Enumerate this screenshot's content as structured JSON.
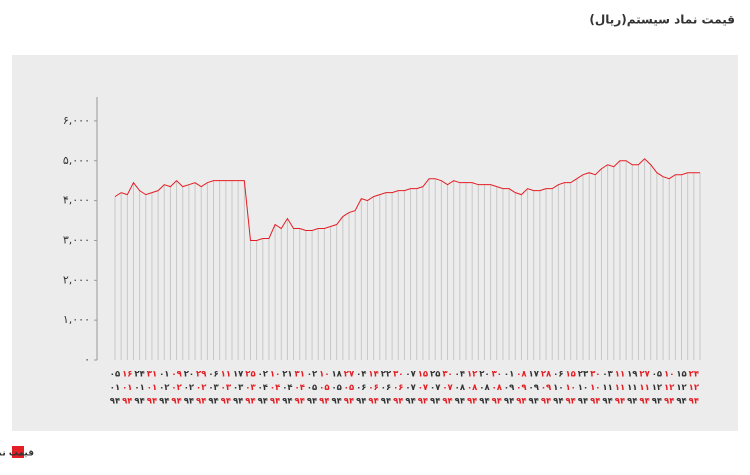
{
  "chart_data": {
    "type": "line",
    "title": "قیمت نماد سیستم(ریال)",
    "legend": "bottom-left",
    "categories": [
      [
        "۰۵",
        "۰۱",
        "۹۴"
      ],
      null,
      [
        "۱۶",
        "۰۱",
        "۹۴"
      ],
      null,
      [
        "۲۴",
        "۰۱",
        "۹۴"
      ],
      null,
      [
        "۳۱",
        "۰۱",
        "۹۴"
      ],
      null,
      [
        "۰۱",
        "۰۲",
        "۹۴"
      ],
      null,
      [
        "۰۹",
        "۰۲",
        "۹۴"
      ],
      null,
      [
        "۲۰",
        "۰۲",
        "۹۴"
      ],
      null,
      [
        "۲۹",
        "۰۲",
        "۹۴"
      ],
      null,
      [
        "۰۶",
        "۰۳",
        "۹۴"
      ],
      null,
      [
        "۱۱",
        "۰۳",
        "۹۴"
      ],
      null,
      [
        "۱۷",
        "۰۳",
        "۹۴"
      ],
      null,
      [
        "۲۵",
        "۰۳",
        "۹۴"
      ],
      null,
      [
        "۰۲",
        "۰۴",
        "۹۴"
      ],
      null,
      [
        "۱۰",
        "۰۴",
        "۹۴"
      ],
      null,
      [
        "۲۱",
        "۰۴",
        "۹۴"
      ],
      null,
      [
        "۳۱",
        "۰۴",
        "۹۴"
      ],
      null,
      [
        "۰۲",
        "۰۵",
        "۹۴"
      ],
      null,
      [
        "۱۰",
        "۰۵",
        "۹۴"
      ],
      null,
      [
        "۱۸",
        "۰۵",
        "۹۴"
      ],
      null,
      [
        "۲۷",
        "۰۵",
        "۹۴"
      ],
      null,
      [
        "۰۴",
        "۰۶",
        "۹۴"
      ],
      null,
      [
        "۱۴",
        "۰۶",
        "۹۴"
      ],
      null,
      [
        "۲۲",
        "۰۶",
        "۹۴"
      ],
      null,
      [
        "۳۰",
        "۰۶",
        "۹۴"
      ],
      null,
      [
        "۰۷",
        "۰۷",
        "۹۴"
      ],
      null,
      [
        "۱۵",
        "۰۷",
        "۹۴"
      ],
      null,
      [
        "۲۵",
        "۰۷",
        "۹۴"
      ],
      null,
      [
        "۳۰",
        "۰۷",
        "۹۴"
      ],
      null,
      [
        "۰۴",
        "۰۸",
        "۹۴"
      ],
      null,
      [
        "۱۲",
        "۰۸",
        "۹۴"
      ],
      null,
      [
        "۲۰",
        "۰۸",
        "۹۴"
      ],
      null,
      [
        "۳۰",
        "۰۸",
        "۹۴"
      ],
      null,
      [
        "۰۱",
        "۰۹",
        "۹۴"
      ],
      null,
      [
        "۰۸",
        "۰۹",
        "۹۴"
      ],
      null,
      [
        "۱۷",
        "۰۹",
        "۹۴"
      ],
      null,
      [
        "۲۸",
        "۰۹",
        "۹۴"
      ],
      null,
      [
        "۰۶",
        "۱۰",
        "۹۴"
      ],
      null,
      [
        "۱۵",
        "۱۰",
        "۹۴"
      ],
      null,
      [
        "۲۳",
        "۱۰",
        "۹۴"
      ],
      null,
      [
        "۳۰",
        "۱۰",
        "۹۴"
      ],
      null,
      [
        "۰۳",
        "۱۱",
        "۹۴"
      ],
      null,
      [
        "۱۱",
        "۱۱",
        "۹۴"
      ],
      null,
      [
        "۱۹",
        "۱۱",
        "۹۴"
      ],
      null,
      [
        "۲۷",
        "۱۱",
        "۹۴"
      ],
      null,
      [
        "۰۵",
        "۱۲",
        "۹۴"
      ],
      null,
      [
        "۱۰",
        "۱۲",
        "۹۴"
      ],
      null,
      [
        "۱۵",
        "۱۲",
        "۹۴"
      ],
      null,
      [
        "۲۴",
        "۱۲",
        "۹۴"
      ],
      null
    ],
    "series": [
      {
        "name": "قیمت نماد سیستم (ریال)",
        "color": "#e31e24",
        "values": [
          4100,
          4200,
          4150,
          4450,
          4250,
          4150,
          4200,
          4250,
          4400,
          4350,
          4500,
          4350,
          4400,
          4450,
          4350,
          4450,
          4500,
          4500,
          4500,
          4500,
          4500,
          4500,
          3000,
          3000,
          3050,
          3050,
          3400,
          3300,
          3550,
          3300,
          3300,
          3250,
          3250,
          3300,
          3300,
          3350,
          3400,
          3600,
          3700,
          3750,
          4050,
          4000,
          4100,
          4150,
          4200,
          4200,
          4250,
          4250,
          4300,
          4300,
          4350,
          4550,
          4550,
          4500,
          4400,
          4500,
          4450,
          4450,
          4450,
          4400,
          4400,
          4400,
          4350,
          4300,
          4300,
          4200,
          4150,
          4300,
          4250,
          4250,
          4300,
          4300,
          4400,
          4450,
          4450,
          4550,
          4650,
          4700,
          4650,
          4800,
          4900,
          4850,
          5000,
          5000,
          4900,
          4900,
          5050,
          4900,
          4700,
          4600,
          4550,
          4650,
          4650,
          4700,
          4700,
          4700
        ]
      }
    ],
    "ylim": [
      0,
      6600
    ],
    "yticks": [
      {
        "value": 0,
        "label": "۰"
      },
      {
        "value": 1000,
        "label": "۱,۰۰۰"
      },
      {
        "value": 2000,
        "label": "۲,۰۰۰"
      },
      {
        "value": 3000,
        "label": "۳,۰۰۰"
      },
      {
        "value": 4000,
        "label": "۴,۰۰۰"
      },
      {
        "value": 5000,
        "label": "۵,۰۰۰"
      },
      {
        "value": 6000,
        "label": "۶,۰۰۰"
      }
    ],
    "drop_line_color": "#c8c8c8",
    "label_colors": [
      "#333333",
      "#e31e24"
    ]
  }
}
